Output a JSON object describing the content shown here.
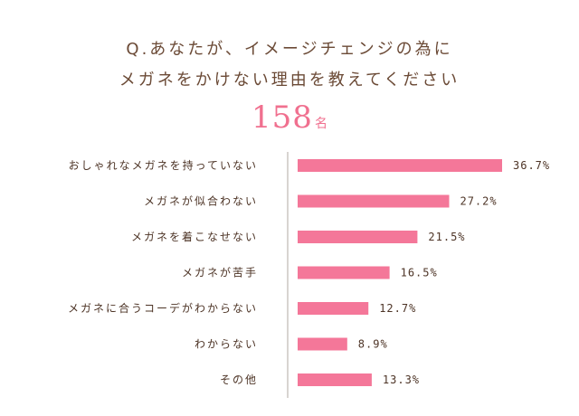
{
  "question": {
    "line1": "Q.あなたが、イメージチェンジの為に",
    "line2": "メガネをかけない理由を教えてください"
  },
  "respondents": {
    "count": "158",
    "unit": "名"
  },
  "colors": {
    "bar": "#f47799",
    "accent": "#f0708f",
    "text": "#4d3426",
    "axis": "#b0a8a3"
  },
  "chart_data": {
    "type": "bar",
    "orientation": "horizontal",
    "categories": [
      "おしゃれなメガネを持っていない",
      "メガネが似合わない",
      "メガネを着こなせない",
      "メガネが苦手",
      "メガネに合うコーデがわからない",
      "わからない",
      "その他"
    ],
    "values": [
      36.7,
      27.2,
      21.5,
      16.5,
      12.7,
      8.9,
      13.3
    ],
    "value_labels": [
      "36.7%",
      "27.2%",
      "21.5%",
      "16.5%",
      "12.7%",
      "8.9%",
      "13.3%"
    ],
    "xlim": [
      0,
      36.7
    ],
    "grid": false
  }
}
